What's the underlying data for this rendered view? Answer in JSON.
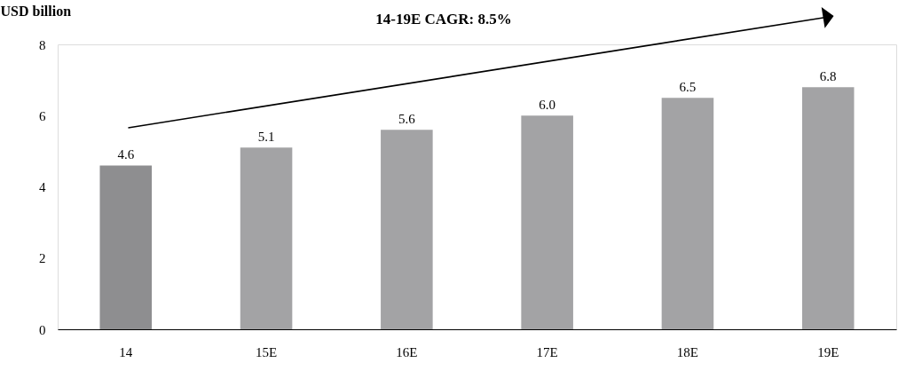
{
  "chart_data": {
    "type": "bar",
    "ylabel": "USD billion",
    "categories": [
      "14",
      "15E",
      "16E",
      "17E",
      "18E",
      "19E"
    ],
    "values": [
      4.6,
      5.1,
      5.6,
      6.0,
      6.5,
      6.8
    ],
    "colors": [
      "#8e8e90",
      "#a3a3a5",
      "#a3a3a5",
      "#a3a3a5",
      "#a3a3a5",
      "#a3a3a5"
    ],
    "value_labels": [
      "4.6",
      "5.1",
      "5.6",
      "6.0",
      "6.5",
      "6.8"
    ],
    "ylim": [
      0,
      8
    ],
    "yticks": [
      0,
      2,
      4,
      6,
      8
    ],
    "annotations": [
      "14-19E CAGR: 8.5%"
    ],
    "grid": false
  }
}
